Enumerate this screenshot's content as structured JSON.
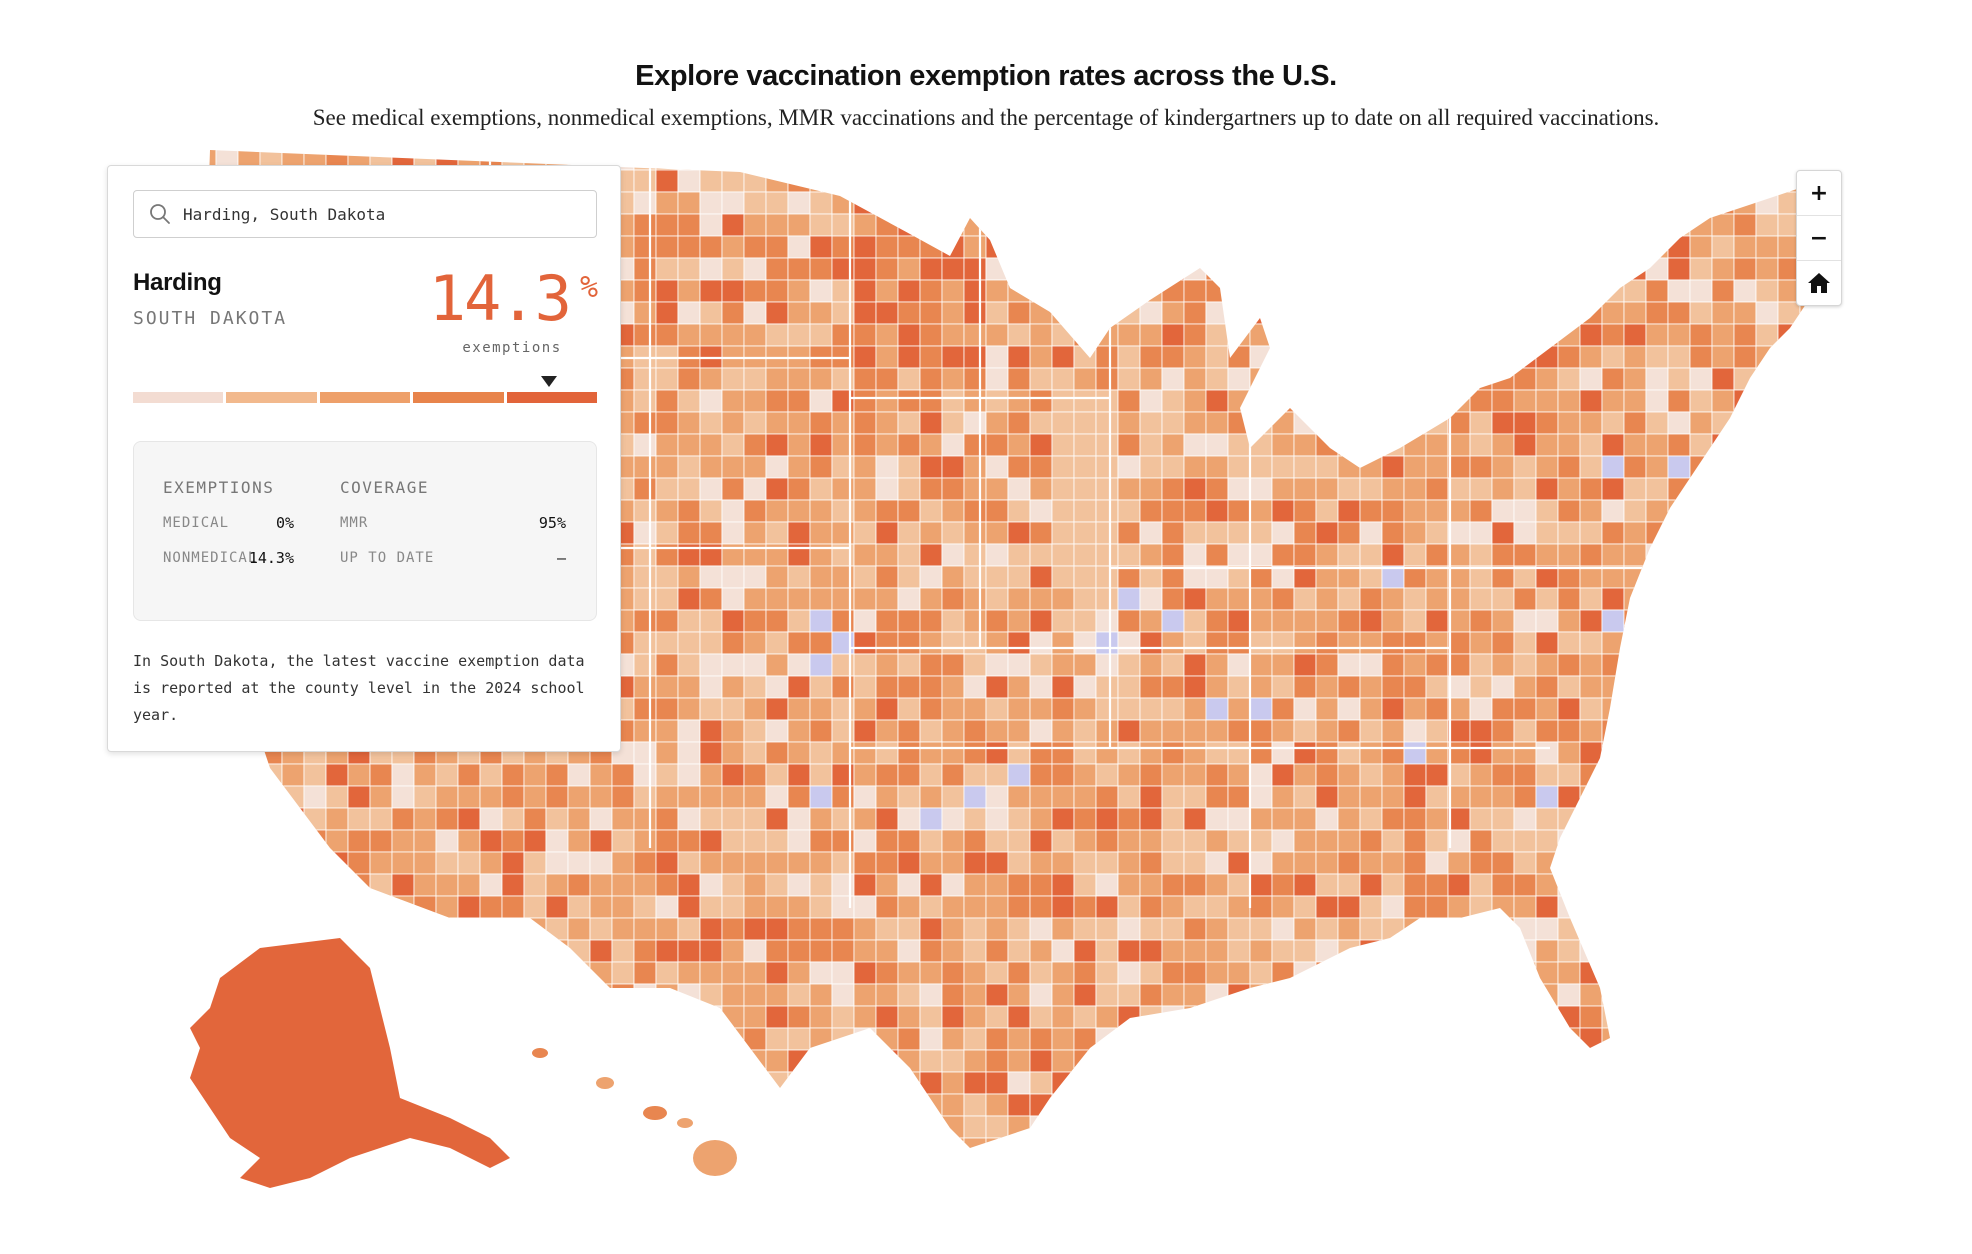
{
  "header": {
    "title": "Explore vaccination exemption rates across the U.S.",
    "subtitle": "See medical exemptions, nonmedical exemptions, MMR vaccinations and the percentage of kindergartners up to date on all required vaccinations."
  },
  "search": {
    "value": "Harding, South Dakota",
    "icon": "search-icon"
  },
  "selected": {
    "county": "Harding",
    "state": "SOUTH DAKOTA",
    "value": "14.3",
    "unit": "%",
    "metric_label": "exemptions",
    "legend_level": 5,
    "legend_levels": 5
  },
  "legend_colors": [
    "#f3dcd2",
    "#f2b98d",
    "#eea06a",
    "#e8844b",
    "#e2643a"
  ],
  "stats": {
    "exemptions_header": "EXEMPTIONS",
    "coverage_header": "COVERAGE",
    "medical_label": "MEDICAL",
    "medical_value": "0%",
    "nonmedical_label": "NONMEDICAL",
    "nonmedical_value": "14.3%",
    "mmr_label": "MMR",
    "mmr_value": "95%",
    "uptodate_label": "UP TO DATE",
    "uptodate_value": "–"
  },
  "note": "In South Dakota, the latest vaccine exemption data is reported at the county level in the 2024 school year.",
  "controls": {
    "zoom_in": "+",
    "zoom_out": "−",
    "home_icon": "home-icon"
  },
  "map_colors": {
    "lightest": "#f4e1d7",
    "light": "#f2c29c",
    "mid": "#eda36f",
    "dark": "#e88650",
    "darkest": "#e2663b",
    "no_data": "#c9c9ee",
    "border": "#ffffff"
  }
}
